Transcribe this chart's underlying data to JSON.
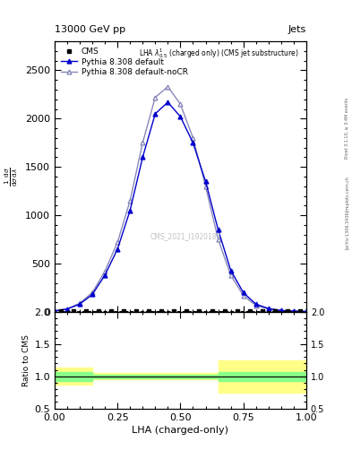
{
  "title": "13000 GeV pp",
  "title_right": "Jets",
  "plot_label": "LHA $\\lambda^{1}_{0.5}$ (charged only) (CMS jet substructure)",
  "watermark": "CMS_2021_I1920187",
  "rivet_label": "Rivet 3.1.10, ≥ 3.4M events",
  "arxiv_label": "[arXiv:1306.3436]",
  "mcplots_label": "mcplots.cern.ch",
  "xlabel": "LHA (charged-only)",
  "ylabel": "$\\frac{1}{\\mathrm{d}\\sigma}\\frac{\\mathrm{d}\\sigma}{\\mathrm{d}\\lambda}$",
  "ylabel_ratio": "Ratio to CMS",
  "xlim": [
    0,
    1
  ],
  "ylim_main": [
    0,
    2800
  ],
  "ylim_ratio": [
    0.5,
    2
  ],
  "cms_x": [
    0.025,
    0.075,
    0.125,
    0.175,
    0.225,
    0.275,
    0.325,
    0.375,
    0.425,
    0.475,
    0.525,
    0.575,
    0.625,
    0.675,
    0.725,
    0.775,
    0.825,
    0.875,
    0.925,
    0.975
  ],
  "cms_y": [
    5,
    5,
    5,
    5,
    5,
    5,
    5,
    5,
    5,
    5,
    5,
    5,
    5,
    5,
    5,
    5,
    5,
    5,
    5,
    5
  ],
  "pythia_x": [
    0.0,
    0.05,
    0.1,
    0.15,
    0.2,
    0.25,
    0.3,
    0.35,
    0.4,
    0.45,
    0.5,
    0.55,
    0.6,
    0.65,
    0.7,
    0.75,
    0.8,
    0.85,
    0.9,
    0.95,
    1.0
  ],
  "pythia_default_y": [
    10,
    30,
    80,
    180,
    380,
    650,
    1050,
    1600,
    2050,
    2170,
    2020,
    1750,
    1350,
    850,
    430,
    200,
    80,
    35,
    15,
    8,
    4
  ],
  "pythia_nocr_y": [
    10,
    30,
    90,
    200,
    420,
    720,
    1150,
    1750,
    2220,
    2330,
    2150,
    1800,
    1300,
    750,
    380,
    170,
    65,
    30,
    12,
    6,
    3
  ],
  "pythia_default_color": "#0000cc",
  "pythia_nocr_color": "#8888bb",
  "cms_color": "#000000",
  "green_band_x": [
    0.0,
    0.15,
    0.15,
    0.65,
    0.65,
    1.0
  ],
  "green_band_lo": [
    0.93,
    0.93,
    0.97,
    0.97,
    0.93,
    0.93
  ],
  "green_band_hi": [
    1.07,
    1.07,
    1.03,
    1.03,
    1.07,
    1.07
  ],
  "yellow_band_lo": [
    0.87,
    0.87,
    0.95,
    0.95,
    0.75,
    0.75
  ],
  "yellow_band_hi": [
    1.13,
    1.13,
    1.05,
    1.05,
    1.25,
    1.25
  ],
  "bg_color": "#ffffff"
}
